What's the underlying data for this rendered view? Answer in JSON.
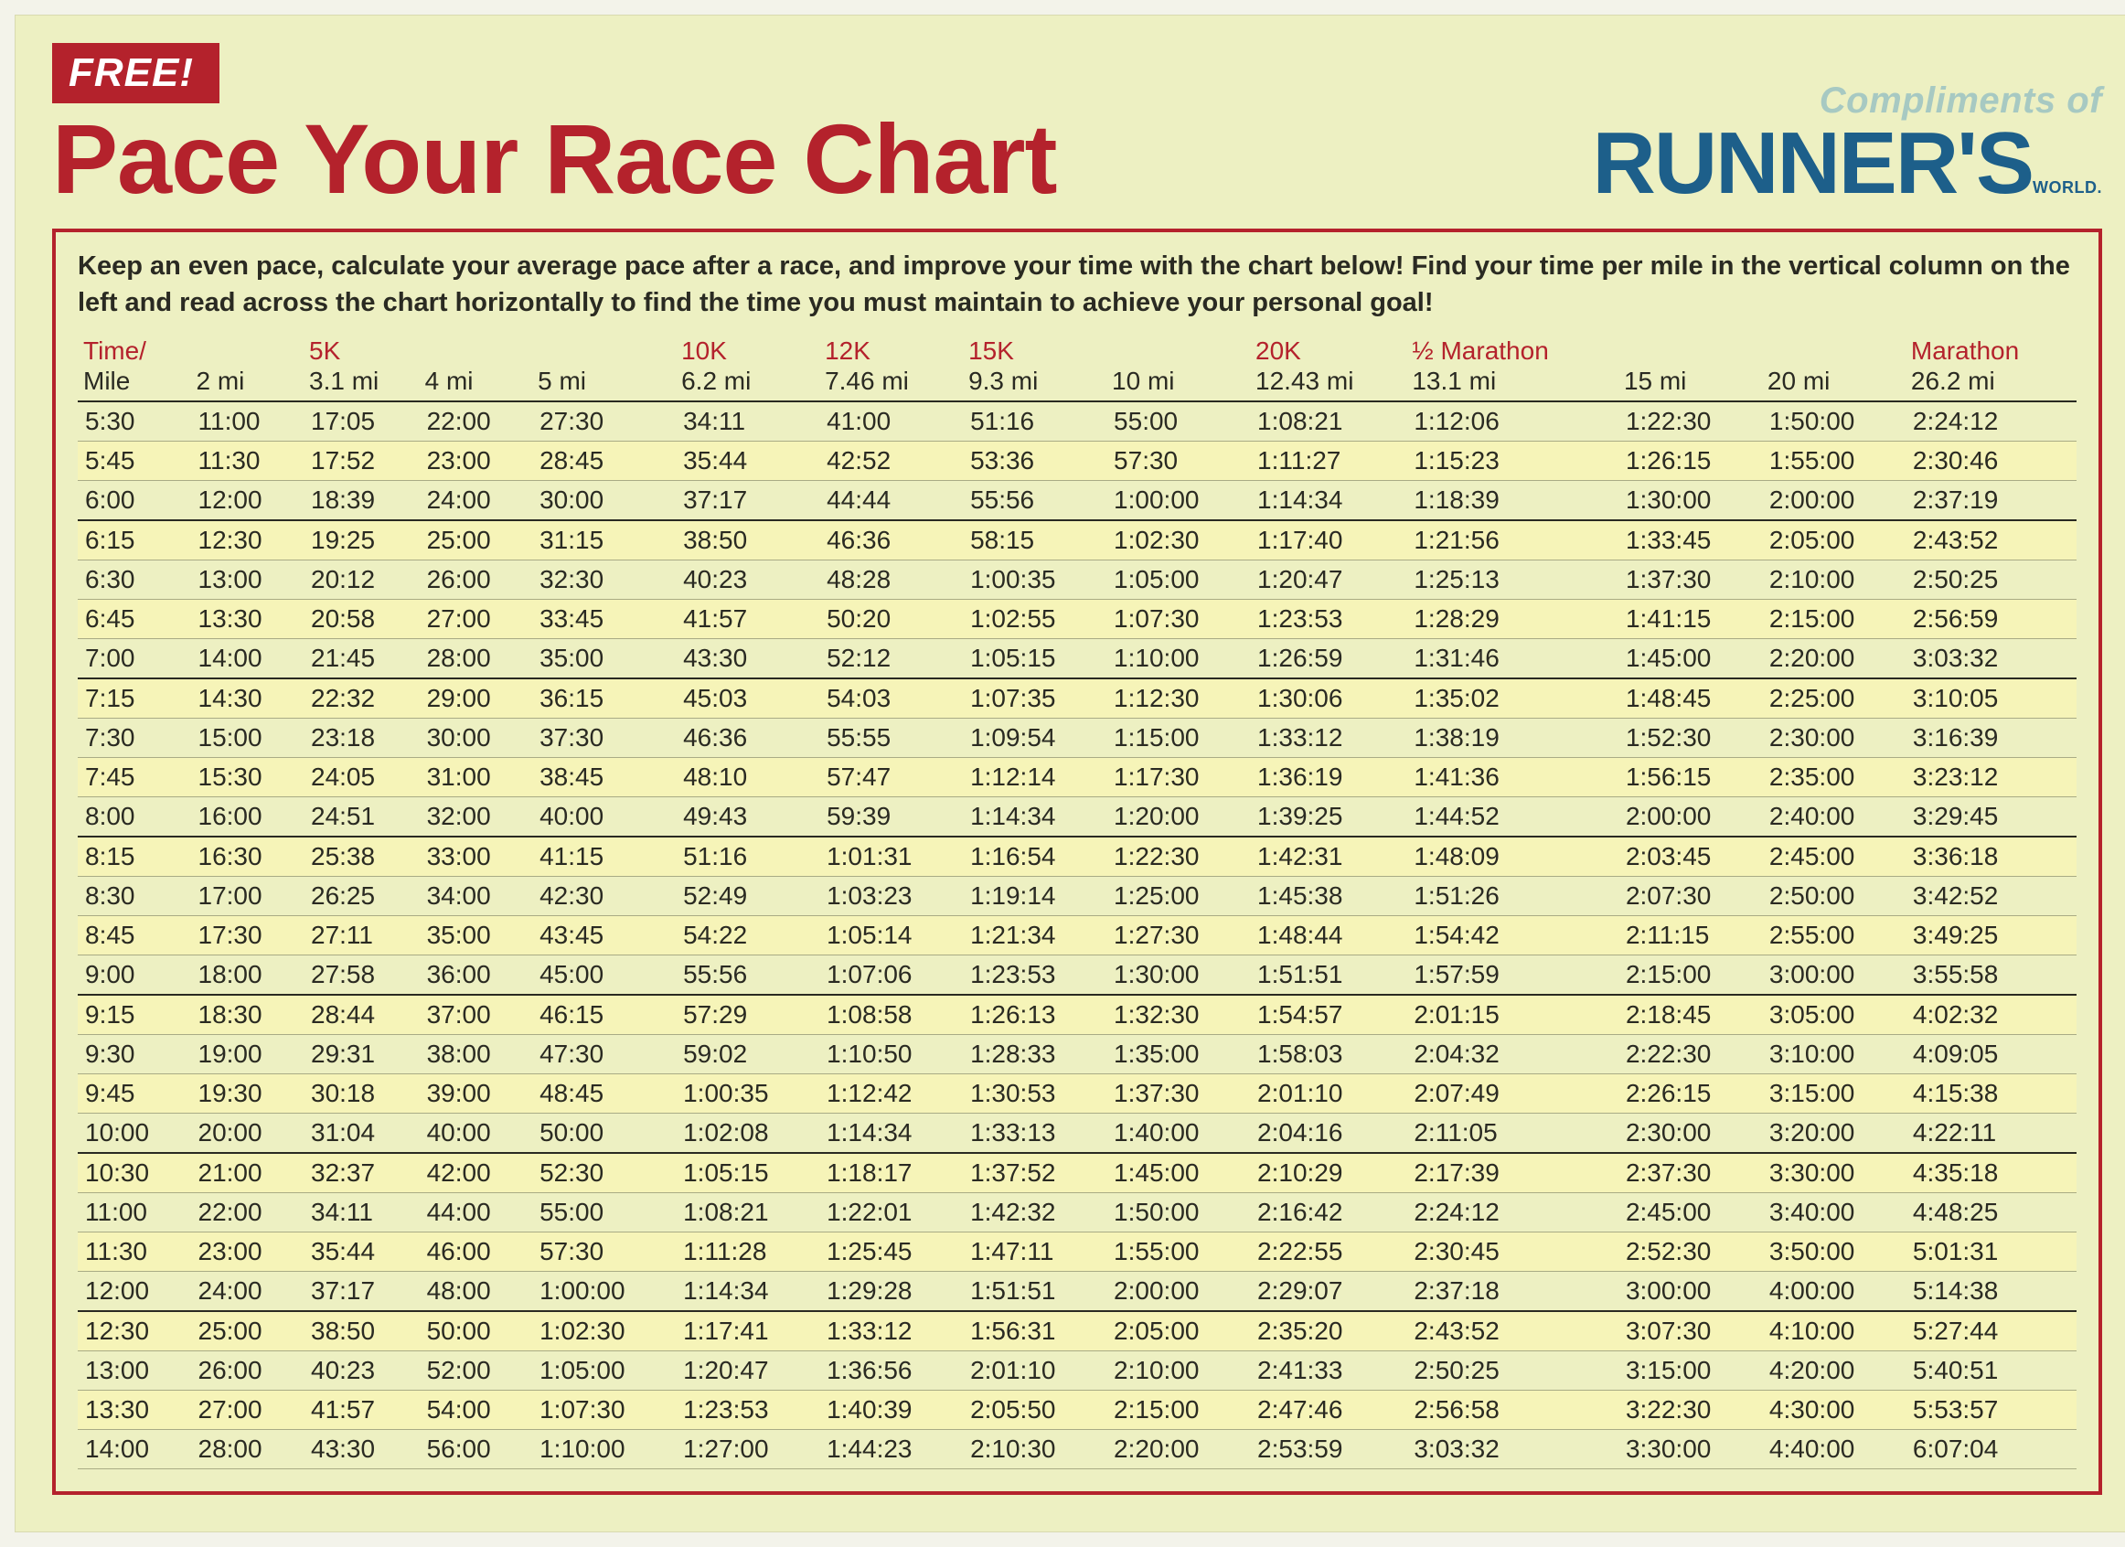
{
  "badge": "FREE!",
  "title": "Pace Your Race Chart",
  "compliments": "Compliments of",
  "runners": "RUNNER'S",
  "runners_small": "WORLD.",
  "instructions": "Keep an even pace, calculate your average pace after a race, and improve your time with the chart below! Find your time per mile in the vertical column on the left and read across the chart horizontally to find the time you must maintain to achieve your personal goal!",
  "colors": {
    "page_bg": "#edf0c2",
    "accent_red": "#b4222c",
    "brand_blue": "#1d5f8a",
    "stripe": "#f6f4b8",
    "text": "#2a2a22",
    "rule": "#a9ab85"
  },
  "columns": [
    {
      "top": "Time/",
      "bot": "Mile"
    },
    {
      "top": "",
      "bot": "2 mi"
    },
    {
      "top": "5K",
      "bot": "3.1 mi"
    },
    {
      "top": "",
      "bot": "4 mi"
    },
    {
      "top": "",
      "bot": "5 mi"
    },
    {
      "top": "10K",
      "bot": "6.2 mi"
    },
    {
      "top": "12K",
      "bot": "7.46 mi"
    },
    {
      "top": "15K",
      "bot": "9.3 mi"
    },
    {
      "top": "",
      "bot": "10 mi"
    },
    {
      "top": "20K",
      "bot": "12.43 mi"
    },
    {
      "top": "½ Marathon",
      "bot": "13.1 mi"
    },
    {
      "top": "",
      "bot": "15 mi"
    },
    {
      "top": "",
      "bot": "20 mi"
    },
    {
      "top": "Marathon",
      "bot": "26.2 mi"
    }
  ],
  "rows": [
    [
      "5:30",
      "11:00",
      "17:05",
      "22:00",
      "27:30",
      "34:11",
      "41:00",
      "51:16",
      "55:00",
      "1:08:21",
      "1:12:06",
      "1:22:30",
      "1:50:00",
      "2:24:12"
    ],
    [
      "5:45",
      "11:30",
      "17:52",
      "23:00",
      "28:45",
      "35:44",
      "42:52",
      "53:36",
      "57:30",
      "1:11:27",
      "1:15:23",
      "1:26:15",
      "1:55:00",
      "2:30:46"
    ],
    [
      "6:00",
      "12:00",
      "18:39",
      "24:00",
      "30:00",
      "37:17",
      "44:44",
      "55:56",
      "1:00:00",
      "1:14:34",
      "1:18:39",
      "1:30:00",
      "2:00:00",
      "2:37:19"
    ],
    [
      "6:15",
      "12:30",
      "19:25",
      "25:00",
      "31:15",
      "38:50",
      "46:36",
      "58:15",
      "1:02:30",
      "1:17:40",
      "1:21:56",
      "1:33:45",
      "2:05:00",
      "2:43:52"
    ],
    [
      "6:30",
      "13:00",
      "20:12",
      "26:00",
      "32:30",
      "40:23",
      "48:28",
      "1:00:35",
      "1:05:00",
      "1:20:47",
      "1:25:13",
      "1:37:30",
      "2:10:00",
      "2:50:25"
    ],
    [
      "6:45",
      "13:30",
      "20:58",
      "27:00",
      "33:45",
      "41:57",
      "50:20",
      "1:02:55",
      "1:07:30",
      "1:23:53",
      "1:28:29",
      "1:41:15",
      "2:15:00",
      "2:56:59"
    ],
    [
      "7:00",
      "14:00",
      "21:45",
      "28:00",
      "35:00",
      "43:30",
      "52:12",
      "1:05:15",
      "1:10:00",
      "1:26:59",
      "1:31:46",
      "1:45:00",
      "2:20:00",
      "3:03:32"
    ],
    [
      "7:15",
      "14:30",
      "22:32",
      "29:00",
      "36:15",
      "45:03",
      "54:03",
      "1:07:35",
      "1:12:30",
      "1:30:06",
      "1:35:02",
      "1:48:45",
      "2:25:00",
      "3:10:05"
    ],
    [
      "7:30",
      "15:00",
      "23:18",
      "30:00",
      "37:30",
      "46:36",
      "55:55",
      "1:09:54",
      "1:15:00",
      "1:33:12",
      "1:38:19",
      "1:52:30",
      "2:30:00",
      "3:16:39"
    ],
    [
      "7:45",
      "15:30",
      "24:05",
      "31:00",
      "38:45",
      "48:10",
      "57:47",
      "1:12:14",
      "1:17:30",
      "1:36:19",
      "1:41:36",
      "1:56:15",
      "2:35:00",
      "3:23:12"
    ],
    [
      "8:00",
      "16:00",
      "24:51",
      "32:00",
      "40:00",
      "49:43",
      "59:39",
      "1:14:34",
      "1:20:00",
      "1:39:25",
      "1:44:52",
      "2:00:00",
      "2:40:00",
      "3:29:45"
    ],
    [
      "8:15",
      "16:30",
      "25:38",
      "33:00",
      "41:15",
      "51:16",
      "1:01:31",
      "1:16:54",
      "1:22:30",
      "1:42:31",
      "1:48:09",
      "2:03:45",
      "2:45:00",
      "3:36:18"
    ],
    [
      "8:30",
      "17:00",
      "26:25",
      "34:00",
      "42:30",
      "52:49",
      "1:03:23",
      "1:19:14",
      "1:25:00",
      "1:45:38",
      "1:51:26",
      "2:07:30",
      "2:50:00",
      "3:42:52"
    ],
    [
      "8:45",
      "17:30",
      "27:11",
      "35:00",
      "43:45",
      "54:22",
      "1:05:14",
      "1:21:34",
      "1:27:30",
      "1:48:44",
      "1:54:42",
      "2:11:15",
      "2:55:00",
      "3:49:25"
    ],
    [
      "9:00",
      "18:00",
      "27:58",
      "36:00",
      "45:00",
      "55:56",
      "1:07:06",
      "1:23:53",
      "1:30:00",
      "1:51:51",
      "1:57:59",
      "2:15:00",
      "3:00:00",
      "3:55:58"
    ],
    [
      "9:15",
      "18:30",
      "28:44",
      "37:00",
      "46:15",
      "57:29",
      "1:08:58",
      "1:26:13",
      "1:32:30",
      "1:54:57",
      "2:01:15",
      "2:18:45",
      "3:05:00",
      "4:02:32"
    ],
    [
      "9:30",
      "19:00",
      "29:31",
      "38:00",
      "47:30",
      "59:02",
      "1:10:50",
      "1:28:33",
      "1:35:00",
      "1:58:03",
      "2:04:32",
      "2:22:30",
      "3:10:00",
      "4:09:05"
    ],
    [
      "9:45",
      "19:30",
      "30:18",
      "39:00",
      "48:45",
      "1:00:35",
      "1:12:42",
      "1:30:53",
      "1:37:30",
      "2:01:10",
      "2:07:49",
      "2:26:15",
      "3:15:00",
      "4:15:38"
    ],
    [
      "10:00",
      "20:00",
      "31:04",
      "40:00",
      "50:00",
      "1:02:08",
      "1:14:34",
      "1:33:13",
      "1:40:00",
      "2:04:16",
      "2:11:05",
      "2:30:00",
      "3:20:00",
      "4:22:11"
    ],
    [
      "10:30",
      "21:00",
      "32:37",
      "42:00",
      "52:30",
      "1:05:15",
      "1:18:17",
      "1:37:52",
      "1:45:00",
      "2:10:29",
      "2:17:39",
      "2:37:30",
      "3:30:00",
      "4:35:18"
    ],
    [
      "11:00",
      "22:00",
      "34:11",
      "44:00",
      "55:00",
      "1:08:21",
      "1:22:01",
      "1:42:32",
      "1:50:00",
      "2:16:42",
      "2:24:12",
      "2:45:00",
      "3:40:00",
      "4:48:25"
    ],
    [
      "11:30",
      "23:00",
      "35:44",
      "46:00",
      "57:30",
      "1:11:28",
      "1:25:45",
      "1:47:11",
      "1:55:00",
      "2:22:55",
      "2:30:45",
      "2:52:30",
      "3:50:00",
      "5:01:31"
    ],
    [
      "12:00",
      "24:00",
      "37:17",
      "48:00",
      "1:00:00",
      "1:14:34",
      "1:29:28",
      "1:51:51",
      "2:00:00",
      "2:29:07",
      "2:37:18",
      "3:00:00",
      "4:00:00",
      "5:14:38"
    ],
    [
      "12:30",
      "25:00",
      "38:50",
      "50:00",
      "1:02:30",
      "1:17:41",
      "1:33:12",
      "1:56:31",
      "2:05:00",
      "2:35:20",
      "2:43:52",
      "3:07:30",
      "4:10:00",
      "5:27:44"
    ],
    [
      "13:00",
      "26:00",
      "40:23",
      "52:00",
      "1:05:00",
      "1:20:47",
      "1:36:56",
      "2:01:10",
      "2:10:00",
      "2:41:33",
      "2:50:25",
      "3:15:00",
      "4:20:00",
      "5:40:51"
    ],
    [
      "13:30",
      "27:00",
      "41:57",
      "54:00",
      "1:07:30",
      "1:23:53",
      "1:40:39",
      "2:05:50",
      "2:15:00",
      "2:47:46",
      "2:56:58",
      "3:22:30",
      "4:30:00",
      "5:53:57"
    ],
    [
      "14:00",
      "28:00",
      "43:30",
      "56:00",
      "1:10:00",
      "1:27:00",
      "1:44:23",
      "2:10:30",
      "2:20:00",
      "2:53:59",
      "3:03:32",
      "3:30:00",
      "4:40:00",
      "6:07:04"
    ]
  ],
  "group_breaks_after": [
    2,
    6,
    10,
    14,
    18,
    22
  ]
}
